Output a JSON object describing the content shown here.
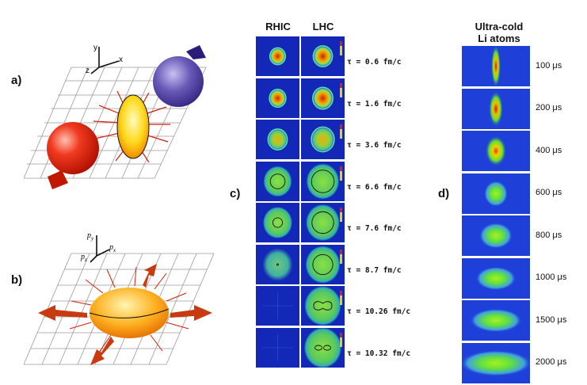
{
  "panels": {
    "a": {
      "label": "a)",
      "axes": {
        "y": "y",
        "x": "x",
        "z": "z"
      }
    },
    "b": {
      "label": "b)",
      "axes": {
        "y": "p",
        "y_sub": "y",
        "x": "p",
        "x_sub": "x",
        "z": "p",
        "z_sub": "z"
      }
    },
    "c": {
      "label": "c)",
      "columns": [
        "RHIC",
        "LHC"
      ],
      "rows": [
        {
          "tau": "τ = 0.6 fm/c"
        },
        {
          "tau": "τ = 1.6 fm/c"
        },
        {
          "tau": "τ = 3.6 fm/c"
        },
        {
          "tau": "τ = 6.6 fm/c"
        },
        {
          "tau": "τ = 7.6 fm/c"
        },
        {
          "tau": "τ = 8.7 fm/c"
        },
        {
          "tau": "τ = 10.26 fm/c"
        },
        {
          "tau": "τ = 10.32 fm/c"
        }
      ]
    },
    "d": {
      "label": "d)",
      "title_line1": "Ultra-cold",
      "title_line2": "Li atoms",
      "frames": [
        {
          "time": "100 μs"
        },
        {
          "time": "200 μs"
        },
        {
          "time": "400 μs"
        },
        {
          "time": "600 μs"
        },
        {
          "time": "800 μs"
        },
        {
          "time": "1000 μs"
        },
        {
          "time": "1500 μs"
        },
        {
          "time": "2000 μs"
        }
      ]
    }
  },
  "colors": {
    "cell_blue": "#1428b8",
    "grid_line": "#9a9a9a",
    "arrow_red": "#d81e06"
  }
}
